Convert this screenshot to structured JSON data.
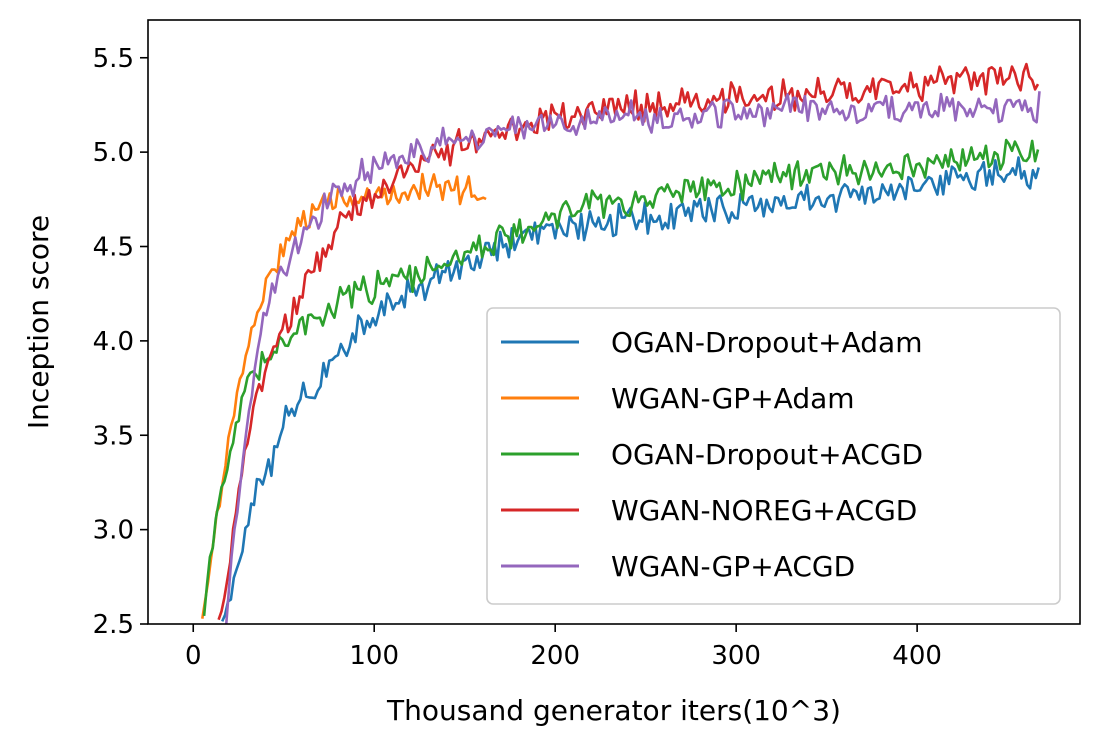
{
  "chart_data": {
    "type": "line",
    "title": "",
    "xlabel": "Thousand generator iters(10^3)",
    "ylabel": "Inception score",
    "xlim": [
      -25,
      490
    ],
    "ylim": [
      2.5,
      5.7
    ],
    "xticks": [
      0,
      100,
      200,
      300,
      400
    ],
    "xtick_labels": [
      "0",
      "100",
      "200",
      "300",
      "400"
    ],
    "yticks": [
      2.5,
      3.0,
      3.5,
      4.0,
      4.5,
      5.0,
      5.5
    ],
    "ytick_labels": [
      "2.5",
      "3.0",
      "3.5",
      "4.0",
      "4.5",
      "5.0",
      "5.5"
    ],
    "grid": false,
    "legend": {
      "position": "lower-right"
    },
    "series": [
      {
        "name": "OGAN-Dropout+Adam",
        "color": "#1f77b4",
        "x": [
          16,
          20,
          25,
          30,
          35,
          40,
          45,
          50,
          55,
          60,
          65,
          70,
          75,
          80,
          85,
          90,
          95,
          100,
          110,
          120,
          130,
          140,
          150,
          160,
          170,
          180,
          190,
          200,
          210,
          220,
          230,
          240,
          250,
          260,
          270,
          280,
          290,
          300,
          310,
          320,
          330,
          340,
          350,
          360,
          370,
          380,
          390,
          400,
          410,
          420,
          430,
          440,
          450,
          460,
          468
        ],
        "y": [
          2.5,
          2.62,
          2.8,
          3.05,
          3.2,
          3.28,
          3.4,
          3.55,
          3.63,
          3.68,
          3.75,
          3.78,
          3.88,
          3.95,
          4.0,
          4.05,
          4.1,
          4.14,
          4.2,
          4.26,
          4.3,
          4.35,
          4.4,
          4.45,
          4.5,
          4.54,
          4.55,
          4.57,
          4.6,
          4.62,
          4.63,
          4.65,
          4.66,
          4.67,
          4.68,
          4.7,
          4.7,
          4.71,
          4.72,
          4.73,
          4.74,
          4.75,
          4.75,
          4.77,
          4.78,
          4.79,
          4.8,
          4.81,
          4.83,
          4.85,
          4.86,
          4.87,
          4.88,
          4.89,
          4.87
        ]
      },
      {
        "name": "WGAN-GP+Adam",
        "color": "#ff7f0e",
        "x": [
          5,
          8,
          12,
          16,
          20,
          25,
          30,
          35,
          40,
          45,
          50,
          55,
          60,
          65,
          70,
          75,
          80,
          90,
          100,
          110,
          120,
          130,
          140,
          150,
          155,
          160,
          162
        ],
        "y": [
          2.5,
          2.7,
          3.0,
          3.25,
          3.5,
          3.75,
          3.95,
          4.15,
          4.3,
          4.42,
          4.5,
          4.56,
          4.62,
          4.66,
          4.7,
          4.72,
          4.74,
          4.76,
          4.78,
          4.79,
          4.8,
          4.8,
          4.81,
          4.81,
          4.82,
          4.8,
          4.8
        ]
      },
      {
        "name": "OGAN-Dropout+ACGD",
        "color": "#2ca02c",
        "x": [
          6,
          8,
          12,
          16,
          20,
          25,
          30,
          35,
          40,
          50,
          60,
          70,
          80,
          90,
          100,
          110,
          120,
          130,
          140,
          150,
          160,
          170,
          180,
          190,
          200,
          210,
          220,
          230,
          240,
          250,
          260,
          270,
          280,
          290,
          300,
          310,
          320,
          330,
          340,
          350,
          360,
          370,
          380,
          390,
          400,
          410,
          420,
          430,
          440,
          450,
          460,
          468
        ],
        "y": [
          2.5,
          2.8,
          3.0,
          3.2,
          3.4,
          3.6,
          3.75,
          3.85,
          3.93,
          4.02,
          4.1,
          4.15,
          4.2,
          4.25,
          4.28,
          4.3,
          4.35,
          4.4,
          4.43,
          4.46,
          4.5,
          4.55,
          4.6,
          4.63,
          4.66,
          4.7,
          4.72,
          4.74,
          4.75,
          4.77,
          4.78,
          4.8,
          4.8,
          4.82,
          4.83,
          4.85,
          4.86,
          4.87,
          4.88,
          4.88,
          4.89,
          4.9,
          4.9,
          4.92,
          4.93,
          4.94,
          4.95,
          4.96,
          4.97,
          4.98,
          5.0,
          4.96
        ]
      },
      {
        "name": "WGAN-NOREG+ACGD",
        "color": "#d62728",
        "x": [
          14,
          17,
          20,
          25,
          30,
          35,
          40,
          50,
          60,
          70,
          80,
          90,
          100,
          110,
          120,
          130,
          140,
          150,
          160,
          170,
          180,
          190,
          200,
          210,
          220,
          230,
          240,
          250,
          260,
          270,
          280,
          290,
          300,
          310,
          320,
          330,
          340,
          350,
          360,
          370,
          380,
          390,
          400,
          410,
          420,
          430,
          440,
          450,
          460,
          468
        ],
        "y": [
          2.5,
          2.65,
          2.8,
          3.2,
          3.5,
          3.7,
          3.85,
          4.05,
          4.25,
          4.45,
          4.6,
          4.7,
          4.78,
          4.85,
          4.9,
          4.95,
          5.0,
          5.05,
          5.1,
          5.12,
          5.14,
          5.16,
          5.18,
          5.2,
          5.22,
          5.24,
          5.25,
          5.25,
          5.25,
          5.26,
          5.27,
          5.28,
          5.28,
          5.29,
          5.3,
          5.3,
          5.31,
          5.32,
          5.33,
          5.34,
          5.34,
          5.35,
          5.35,
          5.36,
          5.37,
          5.38,
          5.39,
          5.4,
          5.4,
          5.3
        ]
      },
      {
        "name": "WGAN-GP+ACGD",
        "color": "#9467bd",
        "x": [
          18,
          20,
          25,
          30,
          35,
          40,
          45,
          50,
          60,
          70,
          80,
          90,
          100,
          110,
          120,
          130,
          140,
          150,
          160,
          170,
          180,
          190,
          200,
          210,
          220,
          230,
          240,
          250,
          260,
          270,
          280,
          290,
          300,
          310,
          320,
          330,
          340,
          350,
          360,
          370,
          380,
          390,
          400,
          410,
          420,
          430,
          440,
          450,
          460,
          468
        ],
        "y": [
          2.5,
          2.7,
          3.2,
          3.55,
          3.9,
          4.15,
          4.3,
          4.4,
          4.55,
          4.68,
          4.78,
          4.86,
          4.92,
          4.97,
          5.0,
          5.03,
          5.06,
          5.08,
          5.1,
          5.12,
          5.13,
          5.14,
          5.15,
          5.16,
          5.17,
          5.18,
          5.18,
          5.19,
          5.19,
          5.2,
          5.2,
          5.21,
          5.21,
          5.21,
          5.22,
          5.22,
          5.22,
          5.22,
          5.23,
          5.23,
          5.23,
          5.23,
          5.23,
          5.23,
          5.24,
          5.24,
          5.24,
          5.24,
          5.25,
          5.24
        ]
      }
    ]
  }
}
